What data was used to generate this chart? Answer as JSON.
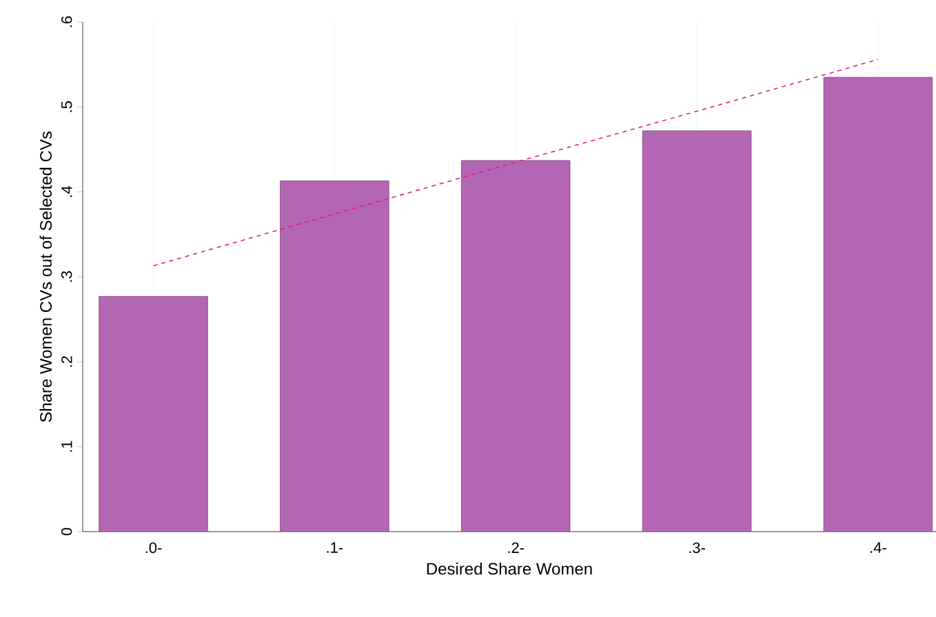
{
  "chart_data": {
    "type": "bar",
    "xlabel": "Desired Share Women",
    "ylabel": "Share Women CVs out of Selected CVs",
    "categories": [
      ".0-",
      ".1-",
      ".2-",
      ".3-",
      ".4-"
    ],
    "series": [
      {
        "color": "#b366b3",
        "values": [
          0.277,
          0.413,
          0.437,
          0.472,
          0.535
        ]
      },
      {
        "type": "line",
        "color": "#e8197d",
        "line_style": "dashed",
        "values": [
          0.313,
          0.374,
          0.435,
          0.495,
          0.556
        ]
      }
    ],
    "ylim": [
      0,
      0.6
    ],
    "yticks": [
      0,
      {
        "value": 0.1,
        "label": ".1"
      },
      {
        "value": 0.2,
        "label": ".2"
      },
      {
        "value": 0.3,
        "label": ".3"
      },
      {
        "value": 0.4,
        "label": ".4"
      },
      {
        "value": 0.5,
        "label": ".5"
      },
      {
        "value": 0.6,
        "label": ".6"
      }
    ],
    "grid": "x"
  }
}
